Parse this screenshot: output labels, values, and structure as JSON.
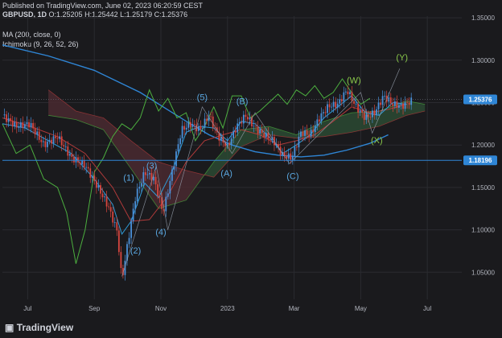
{
  "header": {
    "published": "Published on TradingView.com, June 02, 2023 06:20:59 CEST",
    "symbol": "GBPUSD, 1D",
    "ohlc": "O:1.25205 H:1.25442 L:1.25179 C:1.25376",
    "ma": "MA (200, close, 0)",
    "ichimoku": "Ichimoku (9, 26, 52, 26)"
  },
  "branding": {
    "logo": "TradingView",
    "logo_icon": "tradingview-logo-icon"
  },
  "colors": {
    "background": "#1a1a1d",
    "grid": "#2a2b30",
    "candle_up": "#4a90d9",
    "candle_down": "#d8463f",
    "ma200": "#2f86d6",
    "tenkan": "#2f9bd6",
    "kijun": "#b03a3a",
    "lagging": "#4caf3f",
    "cloud_bull": "#2c4a32",
    "cloud_bear": "#4a2a30",
    "wave_label": "#5aa7e0",
    "wave_label_green": "#8ac84a",
    "price_badge": "#2f86d6",
    "axis_text": "#b2b5be"
  },
  "chart_data": {
    "type": "line",
    "title": "GBPUSD, 1D",
    "x_ticks": [
      "Jul",
      "Sep",
      "Nov",
      "2023",
      "Mar",
      "May",
      "Jul"
    ],
    "y_ticks": [
      "1.35000",
      "1.30000",
      "1.25000",
      "1.20000",
      "1.15000",
      "1.10000",
      "1.05000"
    ],
    "ylim": [
      1.018,
      1.352
    ],
    "xlim": [
      0,
      100
    ],
    "x_tick_pos": [
      5.5,
      20,
      34.5,
      49,
      63.5,
      78,
      92.5
    ],
    "price_badges": [
      {
        "label": "1.25376",
        "value": 1.25376
      },
      {
        "label": "1.18196",
        "value": 1.18196
      }
    ],
    "series": [
      {
        "name": "MA (200, close, 0)",
        "x": [
          0,
          10,
          20,
          30,
          35,
          40,
          45,
          50,
          55,
          60,
          65,
          70,
          75,
          80,
          84
        ],
        "y": [
          1.318,
          1.305,
          1.288,
          1.262,
          1.245,
          1.228,
          1.212,
          1.2,
          1.192,
          1.188,
          1.186,
          1.188,
          1.194,
          1.202,
          1.212
        ]
      },
      {
        "name": "Price",
        "x": [
          0,
          3,
          6,
          9,
          12,
          15,
          18,
          21,
          23,
          25,
          26,
          27,
          29,
          31,
          33,
          35,
          37,
          39,
          41,
          43,
          45,
          47,
          49,
          51,
          53,
          55,
          57,
          59,
          61,
          63,
          65,
          67,
          69,
          71,
          73,
          75,
          77,
          79,
          81,
          83,
          85,
          87,
          89
        ],
        "y": [
          1.235,
          1.222,
          1.225,
          1.2,
          1.21,
          1.185,
          1.176,
          1.148,
          1.128,
          1.098,
          1.04,
          1.075,
          1.14,
          1.168,
          1.16,
          1.12,
          1.17,
          1.218,
          1.225,
          1.218,
          1.235,
          1.21,
          1.198,
          1.222,
          1.235,
          1.22,
          1.212,
          1.205,
          1.188,
          1.185,
          1.215,
          1.212,
          1.232,
          1.246,
          1.248,
          1.265,
          1.245,
          1.232,
          1.238,
          1.258,
          1.248,
          1.246,
          1.252
        ]
      },
      {
        "name": "Tenkan",
        "x": [
          0,
          5,
          10,
          15,
          20,
          24,
          26,
          28,
          31,
          34,
          37,
          40,
          43,
          46,
          49,
          52,
          55,
          58,
          61,
          64,
          67,
          70,
          73,
          76,
          79,
          82,
          85,
          88
        ],
        "y": [
          1.225,
          1.22,
          1.205,
          1.19,
          1.16,
          1.13,
          1.095,
          1.11,
          1.155,
          1.138,
          1.17,
          1.215,
          1.222,
          1.22,
          1.205,
          1.228,
          1.225,
          1.21,
          1.19,
          1.2,
          1.212,
          1.232,
          1.245,
          1.258,
          1.238,
          1.235,
          1.25,
          1.248
        ]
      },
      {
        "name": "Kijun",
        "x": [
          0,
          6,
          12,
          18,
          24,
          28,
          32,
          36,
          40,
          44,
          48,
          52,
          56,
          60,
          64,
          68,
          72,
          76,
          80,
          84,
          88
        ],
        "y": [
          1.232,
          1.222,
          1.21,
          1.19,
          1.15,
          1.11,
          1.112,
          1.14,
          1.18,
          1.205,
          1.212,
          1.218,
          1.212,
          1.2,
          1.205,
          1.212,
          1.228,
          1.245,
          1.238,
          1.242,
          1.248
        ]
      },
      {
        "name": "Lagging",
        "x": [
          0,
          3,
          6,
          9,
          12,
          14,
          16,
          18,
          20,
          22,
          24,
          26,
          28,
          30,
          32,
          34,
          36,
          38,
          40,
          42,
          44,
          46,
          48,
          50,
          52,
          54,
          56,
          58,
          60,
          62,
          64,
          66,
          68,
          70,
          72,
          74,
          76,
          78,
          80
        ],
        "y": [
          1.225,
          1.19,
          1.2,
          1.16,
          1.15,
          1.12,
          1.06,
          1.1,
          1.168,
          1.185,
          1.21,
          1.225,
          1.218,
          1.232,
          1.265,
          1.24,
          1.255,
          1.232,
          1.238,
          1.205,
          1.222,
          1.245,
          1.22,
          1.258,
          1.258,
          1.232,
          1.24,
          1.25,
          1.26,
          1.248,
          1.265,
          1.258,
          1.27,
          1.255,
          1.262,
          1.278,
          1.262,
          1.248,
          1.255
        ]
      },
      {
        "name": "Senkou A",
        "x": [
          10,
          16,
          22,
          28,
          34,
          40,
          46,
          52,
          58,
          64,
          70,
          76,
          82,
          88,
          92
        ],
        "y": [
          1.235,
          1.23,
          1.218,
          1.172,
          1.125,
          1.135,
          1.18,
          1.218,
          1.222,
          1.212,
          1.228,
          1.238,
          1.24,
          1.252,
          1.248
        ]
      },
      {
        "name": "Senkou B",
        "x": [
          10,
          16,
          22,
          28,
          34,
          40,
          46,
          52,
          58,
          64,
          70,
          76,
          82,
          88,
          92
        ],
        "y": [
          1.265,
          1.24,
          1.232,
          1.205,
          1.18,
          1.17,
          1.162,
          1.198,
          1.212,
          1.208,
          1.21,
          1.215,
          1.222,
          1.235,
          1.24
        ]
      },
      {
        "name": "Wave path",
        "x": [
          26,
          33.5,
          36,
          43.5,
          50,
          55,
          62.5,
          78,
          80.5,
          86.5
        ],
        "y": [
          1.045,
          1.175,
          1.1,
          1.245,
          1.19,
          1.238,
          1.178,
          1.262,
          1.214,
          1.29
        ]
      }
    ],
    "annotations": [
      {
        "label": "(1)",
        "x": 27.5,
        "y": 1.158,
        "color": "wave_label"
      },
      {
        "label": "(2)",
        "x": 29,
        "y": 1.072,
        "color": "wave_label"
      },
      {
        "label": "(3)",
        "x": 32.5,
        "y": 1.172,
        "color": "wave_label"
      },
      {
        "label": "(4)",
        "x": 34.5,
        "y": 1.094,
        "color": "wave_label"
      },
      {
        "label": "(5)",
        "x": 43.5,
        "y": 1.253,
        "color": "wave_label"
      },
      {
        "label": "(A)",
        "x": 48.8,
        "y": 1.163,
        "color": "wave_label"
      },
      {
        "label": "(B)",
        "x": 52.2,
        "y": 1.248,
        "color": "wave_label"
      },
      {
        "label": "(C)",
        "x": 63.2,
        "y": 1.16,
        "color": "wave_label"
      },
      {
        "label": "(W)",
        "x": 76.5,
        "y": 1.273,
        "color": "wave_label_green"
      },
      {
        "label": "(X)",
        "x": 81.5,
        "y": 1.202,
        "color": "wave_label_green"
      },
      {
        "label": "(Y)",
        "x": 87,
        "y": 1.3,
        "color": "wave_label_green"
      }
    ],
    "grid": true,
    "legend_position": "top-left"
  }
}
